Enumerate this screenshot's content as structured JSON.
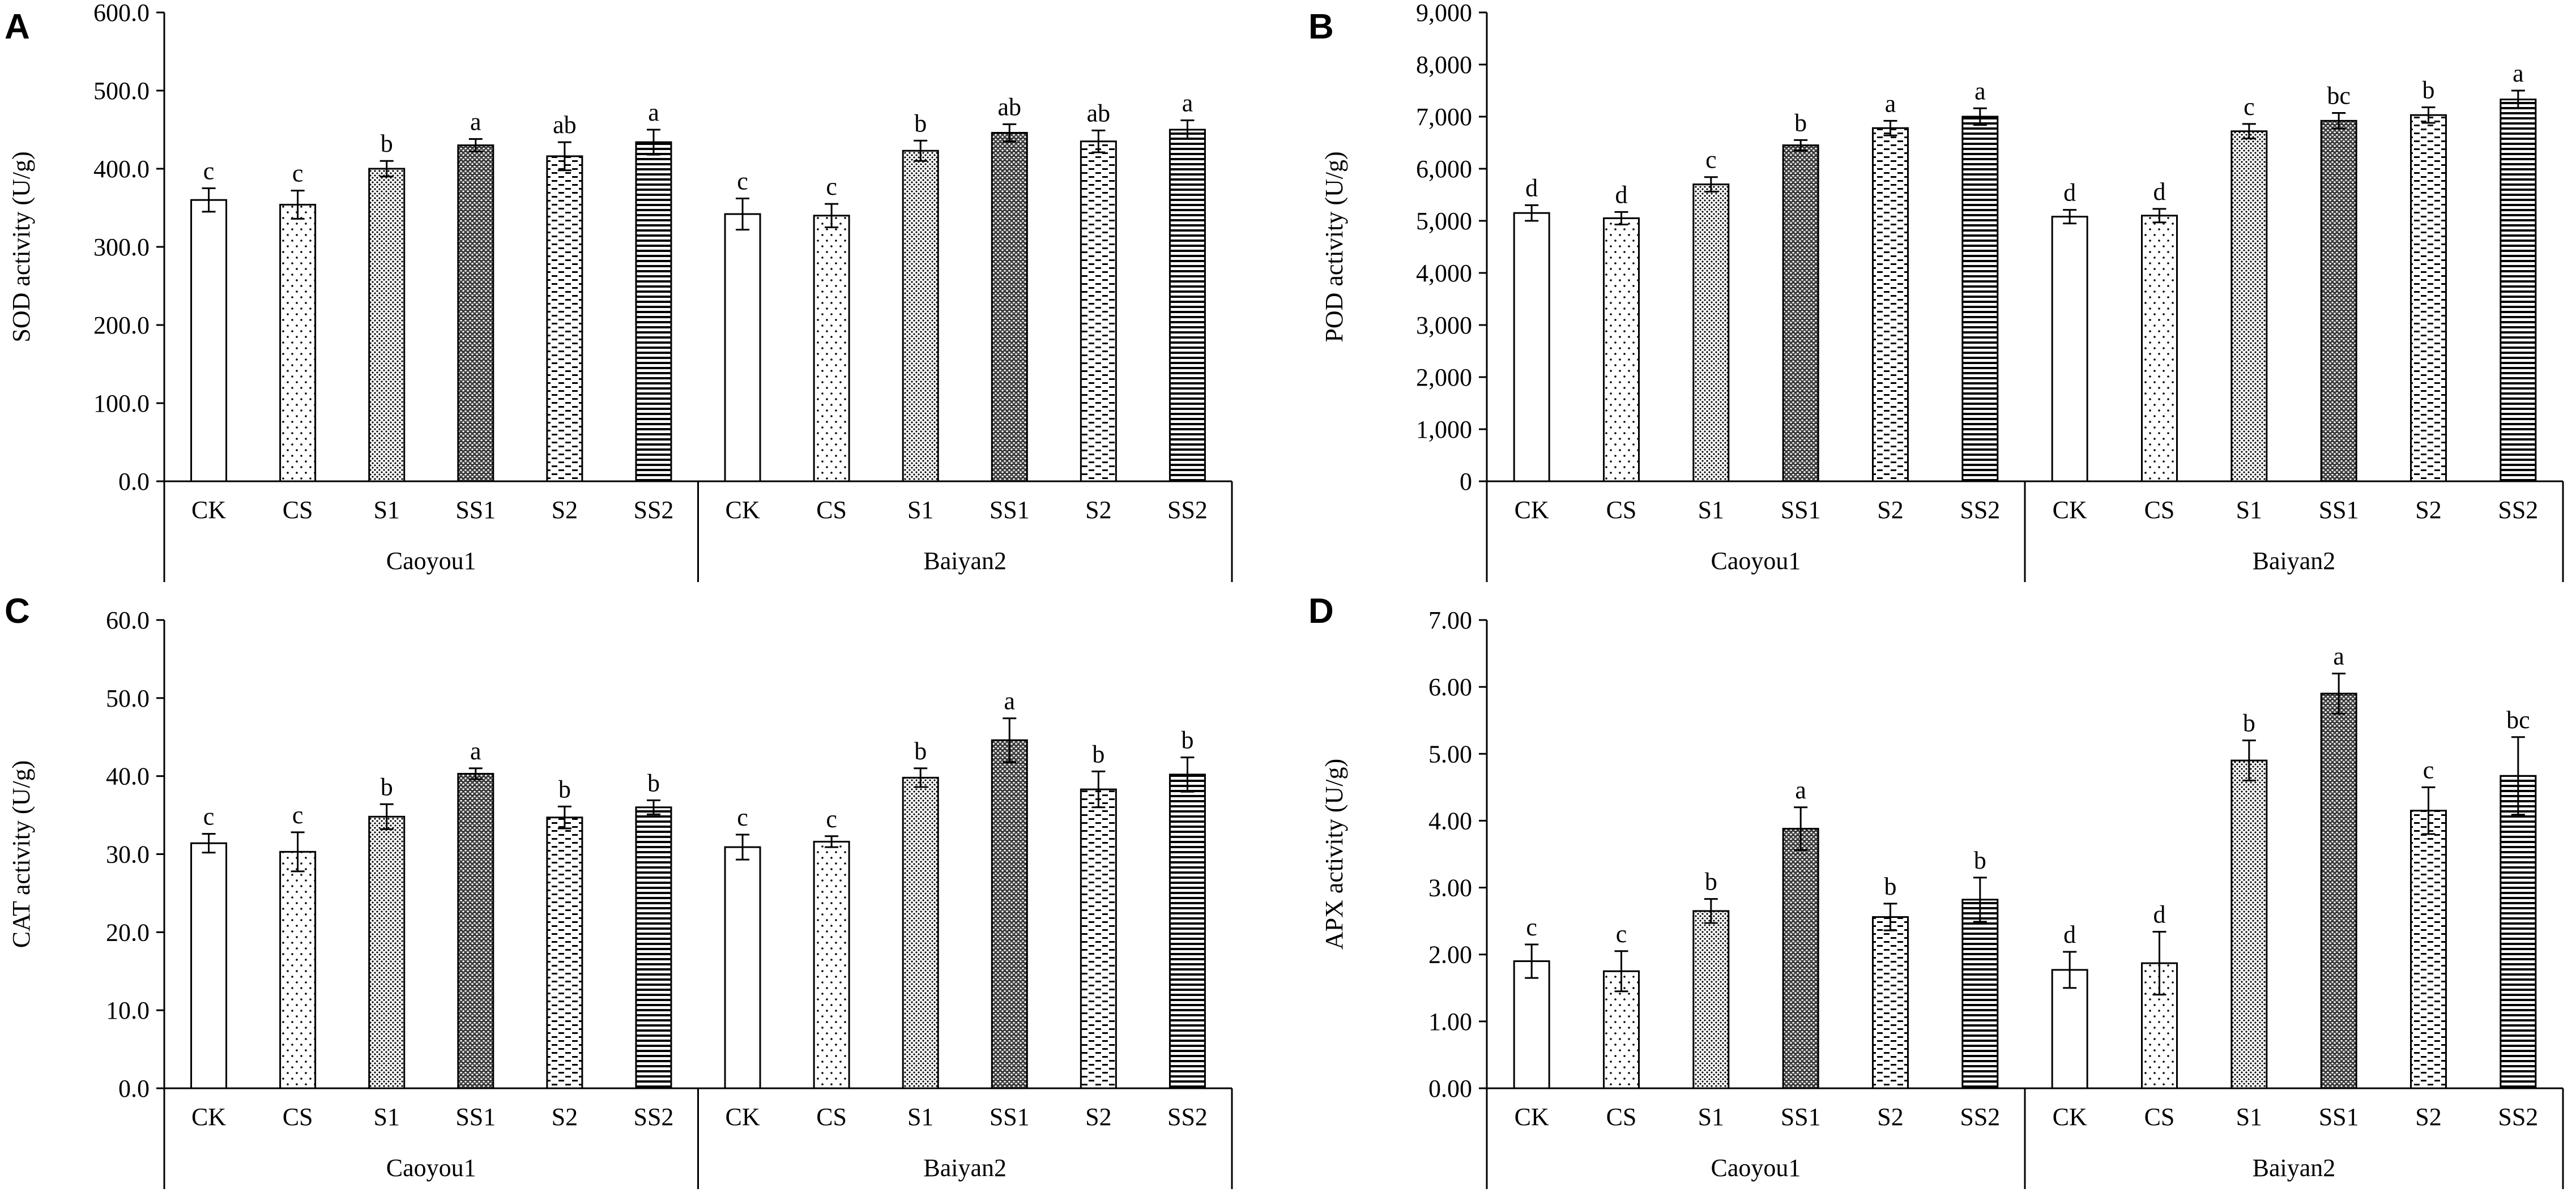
{
  "chart_data": [
    {
      "panel": "A",
      "type": "bar",
      "ylabel": "SOD activity (U/g)",
      "ylim": [
        0,
        600
      ],
      "yticks": [
        "0.0",
        "100.0",
        "200.0",
        "300.0",
        "400.0",
        "500.0",
        "600.0"
      ],
      "groups": [
        {
          "name": "Caoyou1",
          "categories": [
            "CK",
            "CS",
            "S1",
            "SS1",
            "S2",
            "SS2"
          ],
          "values": [
            360,
            354,
            400,
            430,
            416,
            434
          ],
          "errors": [
            15,
            18,
            10,
            8,
            18,
            16
          ],
          "letters": [
            "c",
            "c",
            "b",
            "a",
            "ab",
            "a"
          ]
        },
        {
          "name": "Baiyan2",
          "categories": [
            "CK",
            "CS",
            "S1",
            "SS1",
            "S2",
            "SS2"
          ],
          "values": [
            342,
            340,
            423,
            446,
            435,
            450
          ],
          "errors": [
            20,
            15,
            13,
            11,
            14,
            12
          ],
          "letters": [
            "c",
            "c",
            "b",
            "ab",
            "ab",
            "a"
          ]
        }
      ]
    },
    {
      "panel": "B",
      "type": "bar",
      "ylabel": "POD activity (U/g)",
      "ylim": [
        0,
        9000
      ],
      "yticks": [
        "0",
        "1,000",
        "2,000",
        "3,000",
        "4,000",
        "5,000",
        "6,000",
        "7,000",
        "8,000",
        "9,000"
      ],
      "groups": [
        {
          "name": "Caoyou1",
          "categories": [
            "CK",
            "CS",
            "S1",
            "SS1",
            "S2",
            "SS2"
          ],
          "values": [
            5150,
            5050,
            5700,
            6450,
            6780,
            7000
          ],
          "errors": [
            150,
            120,
            140,
            100,
            140,
            160
          ],
          "letters": [
            "d",
            "d",
            "c",
            "b",
            "a",
            "a"
          ]
        },
        {
          "name": "Baiyan2",
          "categories": [
            "CK",
            "CS",
            "S1",
            "SS1",
            "S2",
            "SS2"
          ],
          "values": [
            5080,
            5100,
            6720,
            6920,
            7030,
            7330
          ],
          "errors": [
            130,
            130,
            140,
            150,
            150,
            170
          ],
          "letters": [
            "d",
            "d",
            "c",
            "bc",
            "b",
            "a"
          ]
        }
      ]
    },
    {
      "panel": "C",
      "type": "bar",
      "ylabel": "CAT activity (U/g)",
      "ylim": [
        0,
        60
      ],
      "yticks": [
        "0.0",
        "10.0",
        "20.0",
        "30.0",
        "40.0",
        "50.0",
        "60.0"
      ],
      "groups": [
        {
          "name": "Caoyou1",
          "categories": [
            "CK",
            "CS",
            "S1",
            "SS1",
            "S2",
            "SS2"
          ],
          "values": [
            31.4,
            30.3,
            34.8,
            40.3,
            34.7,
            36.0
          ],
          "errors": [
            1.2,
            2.5,
            1.6,
            0.7,
            1.4,
            0.9
          ],
          "letters": [
            "c",
            "c",
            "b",
            "a",
            "b",
            "b"
          ]
        },
        {
          "name": "Baiyan2",
          "categories": [
            "CK",
            "CS",
            "S1",
            "SS1",
            "S2",
            "SS2"
          ],
          "values": [
            30.9,
            31.6,
            39.8,
            44.6,
            38.3,
            40.2
          ],
          "errors": [
            1.6,
            0.7,
            1.2,
            2.8,
            2.3,
            2.2
          ],
          "letters": [
            "c",
            "c",
            "b",
            "a",
            "b",
            "b"
          ]
        }
      ]
    },
    {
      "panel": "D",
      "type": "bar",
      "ylabel": "APX activity (U/g)",
      "ylim": [
        0,
        7
      ],
      "yticks": [
        "0.00",
        "1.00",
        "2.00",
        "3.00",
        "4.00",
        "5.00",
        "6.00",
        "7.00"
      ],
      "groups": [
        {
          "name": "Caoyou1",
          "categories": [
            "CK",
            "CS",
            "S1",
            "SS1",
            "S2",
            "SS2"
          ],
          "values": [
            1.9,
            1.75,
            2.65,
            3.88,
            2.56,
            2.82
          ],
          "errors": [
            0.25,
            0.3,
            0.18,
            0.32,
            0.2,
            0.33
          ],
          "letters": [
            "c",
            "c",
            "b",
            "a",
            "b",
            "b"
          ]
        },
        {
          "name": "Baiyan2",
          "categories": [
            "CK",
            "CS",
            "S1",
            "SS1",
            "S2",
            "SS2"
          ],
          "values": [
            1.77,
            1.87,
            4.9,
            5.9,
            4.15,
            4.67
          ],
          "errors": [
            0.27,
            0.47,
            0.3,
            0.3,
            0.35,
            0.58
          ],
          "letters": [
            "d",
            "d",
            "b",
            "a",
            "c",
            "bc"
          ]
        }
      ]
    }
  ]
}
